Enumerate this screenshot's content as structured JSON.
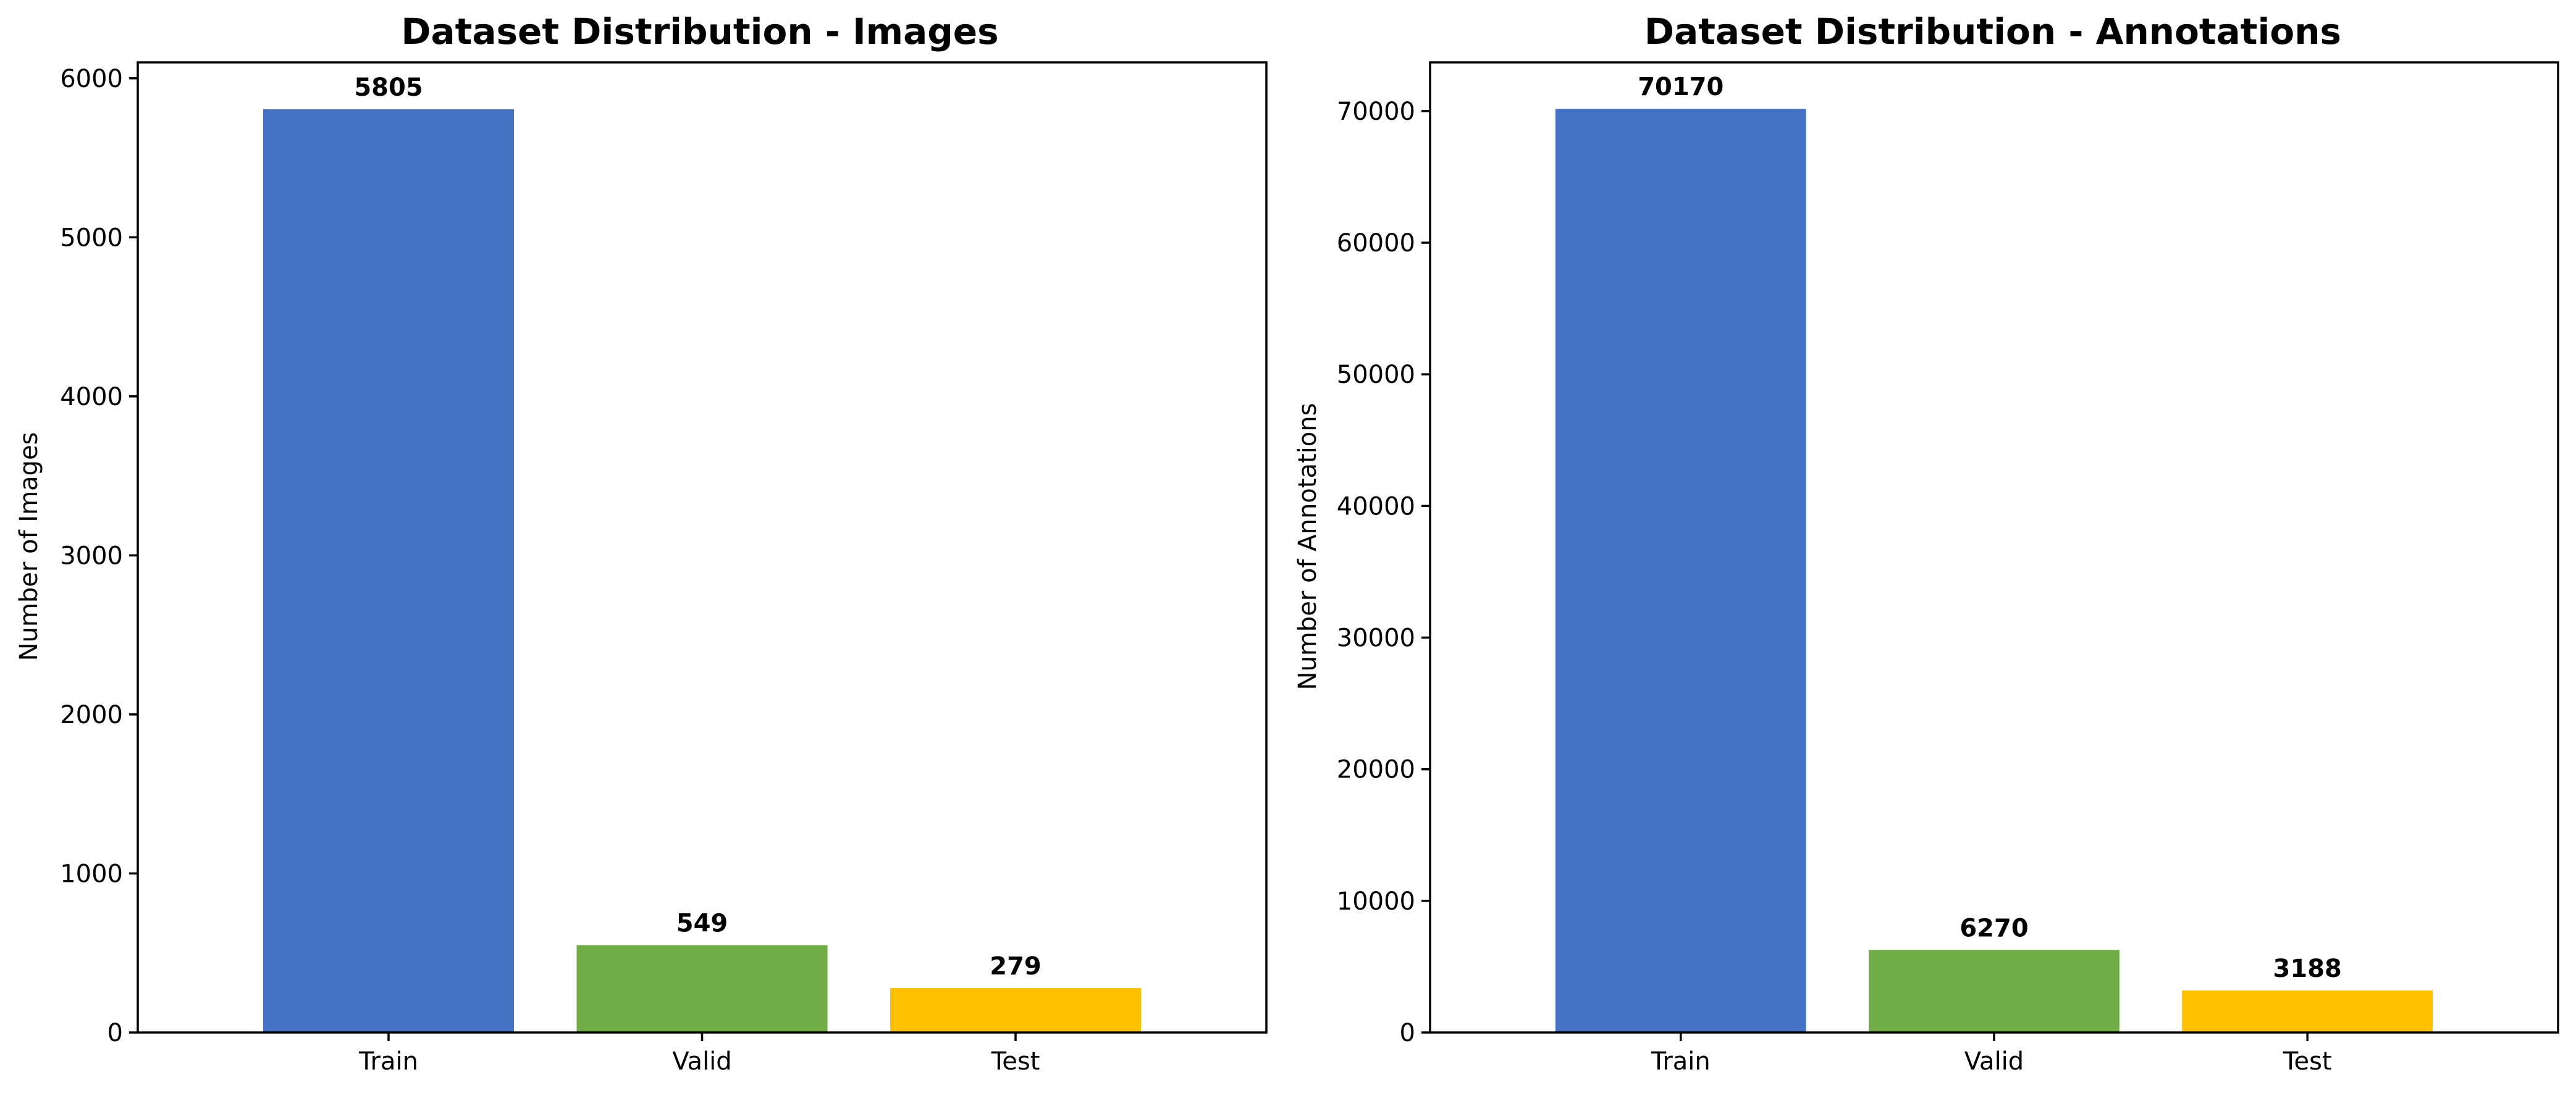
{
  "chart_data": [
    {
      "type": "bar",
      "title": "Dataset Distribution - Images",
      "xlabel": "",
      "ylabel": "Number of Images",
      "categories": [
        "Train",
        "Valid",
        "Test"
      ],
      "values": [
        5805,
        549,
        279
      ],
      "value_labels": [
        "5805",
        "549",
        "279"
      ],
      "colors": [
        "#4472c4",
        "#70ad47",
        "#ffc000"
      ],
      "ylim": [
        0,
        6100
      ],
      "yticks": [
        0,
        1000,
        2000,
        3000,
        4000,
        5000,
        6000
      ],
      "grid": false,
      "legend": "none"
    },
    {
      "type": "bar",
      "title": "Dataset Distribution - Annotations",
      "xlabel": "",
      "ylabel": "Number of Annotations",
      "categories": [
        "Train",
        "Valid",
        "Test"
      ],
      "values": [
        70170,
        6270,
        3188
      ],
      "value_labels": [
        "70170",
        "6270",
        "3188"
      ],
      "colors": [
        "#4472c4",
        "#70ad47",
        "#ffc000"
      ],
      "ylim": [
        0,
        73700
      ],
      "yticks": [
        0,
        10000,
        20000,
        30000,
        40000,
        50000,
        60000,
        70000
      ],
      "grid": false,
      "legend": "none"
    }
  ]
}
